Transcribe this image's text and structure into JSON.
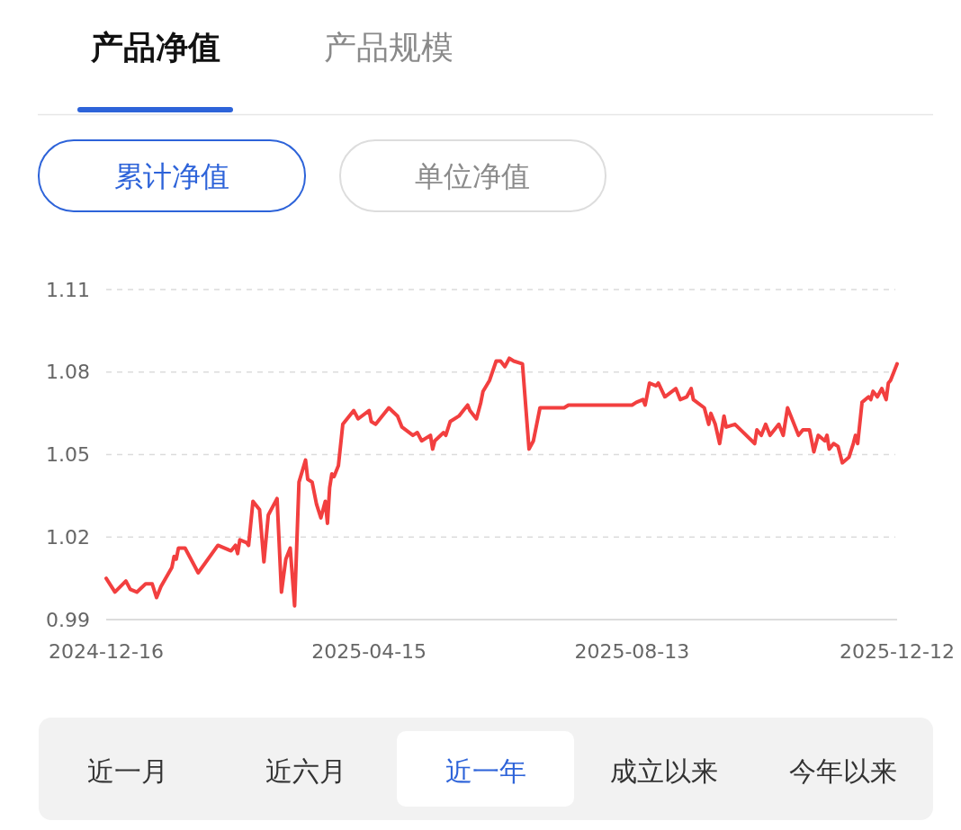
{
  "chart_data": {
    "type": "line",
    "annotations": [
      "产品净值",
      "产品规模",
      "累计净值",
      "单位净值",
      "近一月",
      "近六月",
      "近一年",
      "成立以来",
      "今年以来"
    ],
    "x": [
      "2024-12-16",
      "2024-12-20",
      "2024-12-25",
      "2024-12-27",
      "2024-12-30",
      "2025-01-03",
      "2025-01-06",
      "2025-01-08",
      "2025-01-10",
      "2025-01-15",
      "2025-01-16",
      "2025-01-17",
      "2025-01-18",
      "2025-01-21",
      "2025-01-27",
      "2025-02-05",
      "2025-02-11",
      "2025-02-13",
      "2025-02-14",
      "2025-02-15",
      "2025-02-18",
      "2025-02-19",
      "2025-02-21",
      "2025-02-24",
      "2025-02-26",
      "2025-02-28",
      "2025-03-04",
      "2025-03-06",
      "2025-03-08",
      "2025-03-10",
      "2025-03-12",
      "2025-03-14",
      "2025-03-17",
      "2025-03-18",
      "2025-03-20",
      "2025-03-22",
      "2025-03-24",
      "2025-03-26",
      "2025-03-27",
      "2025-03-28",
      "2025-03-29",
      "2025-03-30",
      "2025-04-01",
      "2025-04-03",
      "2025-04-08",
      "2025-04-10",
      "2025-04-15",
      "2025-04-16",
      "2025-04-18",
      "2025-04-24",
      "2025-04-28",
      "2025-04-30",
      "2025-05-05",
      "2025-05-07",
      "2025-05-09",
      "2025-05-13",
      "2025-05-14",
      "2025-05-15",
      "2025-05-19",
      "2025-05-20",
      "2025-05-22",
      "2025-05-26",
      "2025-05-28",
      "2025-05-30",
      "2025-05-31",
      "2025-06-03",
      "2025-06-05",
      "2025-06-06",
      "2025-06-09",
      "2025-06-12",
      "2025-06-14",
      "2025-06-16",
      "2025-06-18",
      "2025-06-20",
      "2025-06-24",
      "2025-06-27",
      "2025-06-29",
      "2025-07-02",
      "2025-07-04",
      "2025-07-13",
      "2025-07-15",
      "2025-08-03",
      "2025-08-13",
      "2025-08-15",
      "2025-08-18",
      "2025-08-19",
      "2025-08-21",
      "2025-08-24",
      "2025-08-25",
      "2025-08-28",
      "2025-09-02",
      "2025-09-04",
      "2025-09-07",
      "2025-09-09",
      "2025-09-10",
      "2025-09-15",
      "2025-09-17",
      "2025-09-18",
      "2025-09-20",
      "2025-09-22",
      "2025-09-24",
      "2025-09-25",
      "2025-09-29",
      "2025-10-08",
      "2025-10-09",
      "2025-10-11",
      "2025-10-13",
      "2025-10-15",
      "2025-10-19",
      "2025-10-21",
      "2025-10-23",
      "2025-10-28",
      "2025-10-30",
      "2025-11-02",
      "2025-11-04",
      "2025-11-06",
      "2025-11-09",
      "2025-11-10",
      "2025-11-11",
      "2025-11-13",
      "2025-11-15",
      "2025-11-17",
      "2025-11-20",
      "2025-11-22",
      "2025-11-23",
      "2025-11-24",
      "2025-11-26",
      "2025-11-29",
      "2025-11-30",
      "2025-12-01",
      "2025-12-03",
      "2025-12-05",
      "2025-12-07",
      "2025-12-08",
      "2025-12-09",
      "2025-12-12"
    ],
    "series": [
      {
        "color": "#f23f3f",
        "values": [
          1.005,
          1.0,
          1.004,
          1.001,
          1.0,
          1.003,
          1.003,
          0.998,
          1.002,
          1.009,
          1.013,
          1.012,
          1.016,
          1.016,
          1.007,
          1.017,
          1.015,
          1.017,
          1.014,
          1.019,
          1.018,
          1.017,
          1.033,
          1.03,
          1.011,
          1.028,
          1.034,
          1.0,
          1.012,
          1.016,
          0.995,
          1.04,
          1.048,
          1.041,
          1.04,
          1.032,
          1.027,
          1.033,
          1.025,
          1.038,
          1.043,
          1.042,
          1.046,
          1.061,
          1.066,
          1.063,
          1.066,
          1.062,
          1.061,
          1.067,
          1.064,
          1.06,
          1.057,
          1.058,
          1.055,
          1.057,
          1.052,
          1.055,
          1.058,
          1.057,
          1.062,
          1.064,
          1.066,
          1.068,
          1.066,
          1.063,
          1.069,
          1.073,
          1.077,
          1.084,
          1.084,
          1.082,
          1.085,
          1.084,
          1.083,
          1.052,
          1.055,
          1.067,
          1.067,
          1.067,
          1.068,
          1.068,
          1.068,
          1.069,
          1.07,
          1.068,
          1.076,
          1.075,
          1.076,
          1.071,
          1.074,
          1.07,
          1.071,
          1.074,
          1.07,
          1.067,
          1.061,
          1.065,
          1.061,
          1.054,
          1.064,
          1.06,
          1.061,
          1.054,
          1.059,
          1.057,
          1.061,
          1.057,
          1.061,
          1.057,
          1.067,
          1.057,
          1.059,
          1.059,
          1.051,
          1.057,
          1.055,
          1.057,
          1.052,
          1.054,
          1.053,
          1.047,
          1.049,
          1.054,
          1.057,
          1.054,
          1.069,
          1.071,
          1.07,
          1.073,
          1.071,
          1.074,
          1.07,
          1.076,
          1.077,
          1.083
        ]
      }
    ],
    "xlim": [
      "2024-12-16",
      "2025-12-12"
    ],
    "xticks": [
      "2024-12-16",
      "2025-04-15",
      "2025-08-13",
      "2025-12-12"
    ],
    "ylim": [
      0.99,
      1.11
    ],
    "yticks": [
      {
        "value": 0.99,
        "label": "0.99"
      },
      {
        "value": 1.02,
        "label": "1.02"
      },
      {
        "value": 1.05,
        "label": "1.05"
      },
      {
        "value": 1.08,
        "label": "1.08"
      },
      {
        "value": 1.11,
        "label": "1.11"
      }
    ],
    "grid": "y"
  }
}
